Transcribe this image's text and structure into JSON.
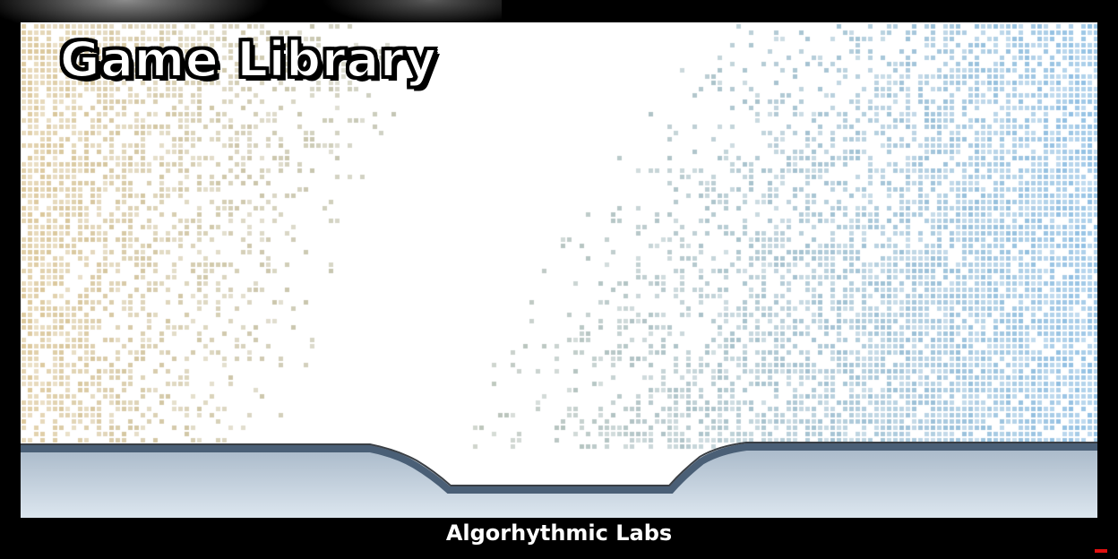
{
  "header": {
    "title": "Game Library"
  },
  "footer": {
    "studio": "Algorhythmic Labs"
  },
  "palette": {
    "background": "#000000",
    "panel": "#ffffff",
    "pixel_warm": "#dcc79a",
    "pixel_cool": "#8fbfe4",
    "ground_edge": "#4a5f76",
    "ground_fill_top": "#a9b9c9",
    "ground_fill_bottom": "#dce6ef",
    "indicator": "#e01010"
  },
  "icons": {
    "status_indicator": "red-dash-icon"
  }
}
